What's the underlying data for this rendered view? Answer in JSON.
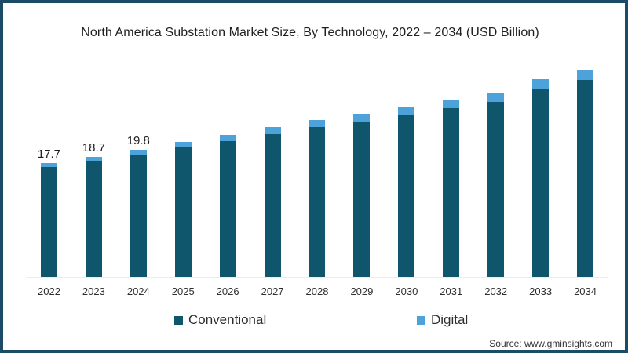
{
  "frame": {
    "border_color": "#1b4b66",
    "background": "#ffffff"
  },
  "title": "North America Substation Market Size, By Technology, 2022 – 2034 (USD Billion)",
  "legend": {
    "items": [
      {
        "label": "Conventional",
        "color": "#0f556c"
      },
      {
        "label": "Digital",
        "color": "#4da3d9"
      }
    ]
  },
  "source": "Source: www.gminsights.com",
  "chart_data": {
    "type": "bar",
    "stacked": true,
    "title": "North America Substation Market Size, By Technology, 2022 – 2034 (USD Billion)",
    "xlabel": "",
    "ylabel": "USD Billion",
    "categories": [
      "2022",
      "2023",
      "2024",
      "2025",
      "2026",
      "2027",
      "2028",
      "2029",
      "2030",
      "2031",
      "2032",
      "2033",
      "2034"
    ],
    "series": [
      {
        "name": "Conventional",
        "color": "#0f556c",
        "values": [
          17.1,
          18.0,
          19.0,
          20.1,
          21.1,
          22.2,
          23.3,
          24.2,
          25.2,
          26.2,
          27.2,
          29.2,
          30.6
        ]
      },
      {
        "name": "Digital",
        "color": "#4da3d9",
        "values": [
          0.6,
          0.7,
          0.8,
          0.9,
          1.0,
          1.1,
          1.1,
          1.2,
          1.3,
          1.3,
          1.4,
          1.5,
          1.6
        ]
      }
    ],
    "totals": [
      17.7,
      18.7,
      19.8,
      21.0,
      22.1,
      23.3,
      24.4,
      25.4,
      26.5,
      27.5,
      28.6,
      30.7,
      32.2
    ],
    "value_labels": [
      "17.7",
      "18.7",
      "19.8",
      "",
      "",
      "",
      "",
      "",
      "",
      "",
      "",
      "",
      ""
    ],
    "ylim": [
      0,
      35.6
    ],
    "grid": false,
    "axis_line_color": "#ececec",
    "legend_position": "bottom"
  }
}
